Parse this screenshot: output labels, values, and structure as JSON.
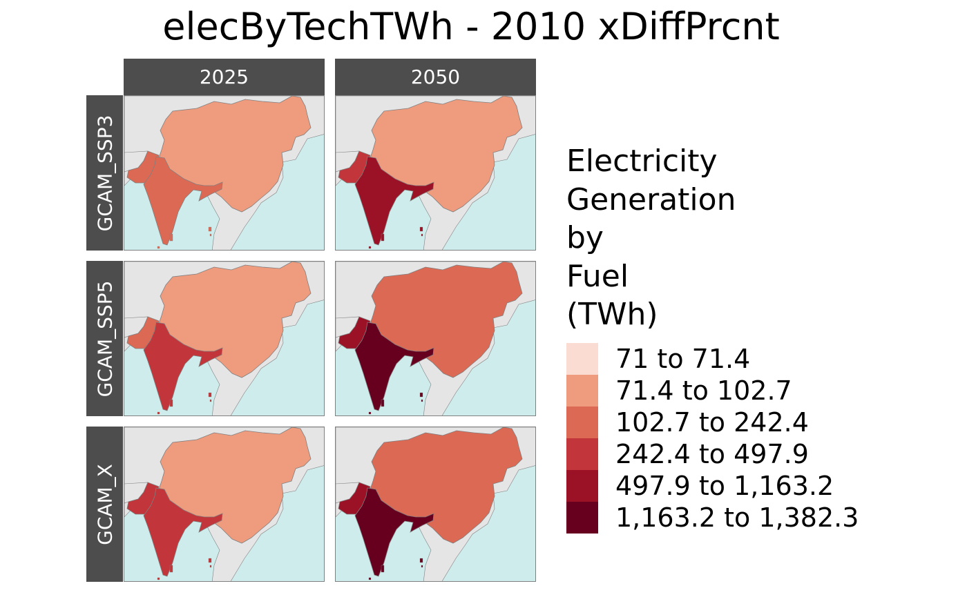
{
  "title": "elecByTechTWh - 2010 xDiffPrcnt",
  "columns": [
    "2025",
    "2050"
  ],
  "rows": [
    "GCAM_SSP3",
    "GCAM_SSP5",
    "GCAM_X"
  ],
  "legend": {
    "title_lines": [
      "Electricity",
      "Generation",
      "by",
      "Fuel",
      "(TWh)"
    ],
    "items": [
      {
        "label": "71 to 71.4",
        "color": "#fbdcd2"
      },
      {
        "label": "71.4 to 102.7",
        "color": "#ef9b7e"
      },
      {
        "label": "102.7 to 242.4",
        "color": "#dc6954"
      },
      {
        "label": "242.4 to 497.9",
        "color": "#c2353a"
      },
      {
        "label": "497.9 to 1,163.2",
        "color": "#9b1226"
      },
      {
        "label": "1,163.2 to 1,382.3",
        "color": "#67001f"
      }
    ]
  },
  "colors": {
    "ocean": "#cfecec",
    "land": "#e5e5e5",
    "border": "#7f7f7f",
    "strip": "#4d4d4d"
  },
  "panels": [
    {
      "row": "GCAM_SSP3",
      "col": "2025",
      "china": 1,
      "india": 2,
      "pakistan": 2
    },
    {
      "row": "GCAM_SSP3",
      "col": "2050",
      "china": 1,
      "india": 4,
      "pakistan": 3
    },
    {
      "row": "GCAM_SSP5",
      "col": "2025",
      "china": 1,
      "india": 3,
      "pakistan": 2
    },
    {
      "row": "GCAM_SSP5",
      "col": "2050",
      "china": 2,
      "india": 5,
      "pakistan": 4
    },
    {
      "row": "GCAM_X",
      "col": "2025",
      "china": 1,
      "india": 3,
      "pakistan": 3
    },
    {
      "row": "GCAM_X",
      "col": "2050",
      "china": 2,
      "india": 5,
      "pakistan": 4
    }
  ]
}
